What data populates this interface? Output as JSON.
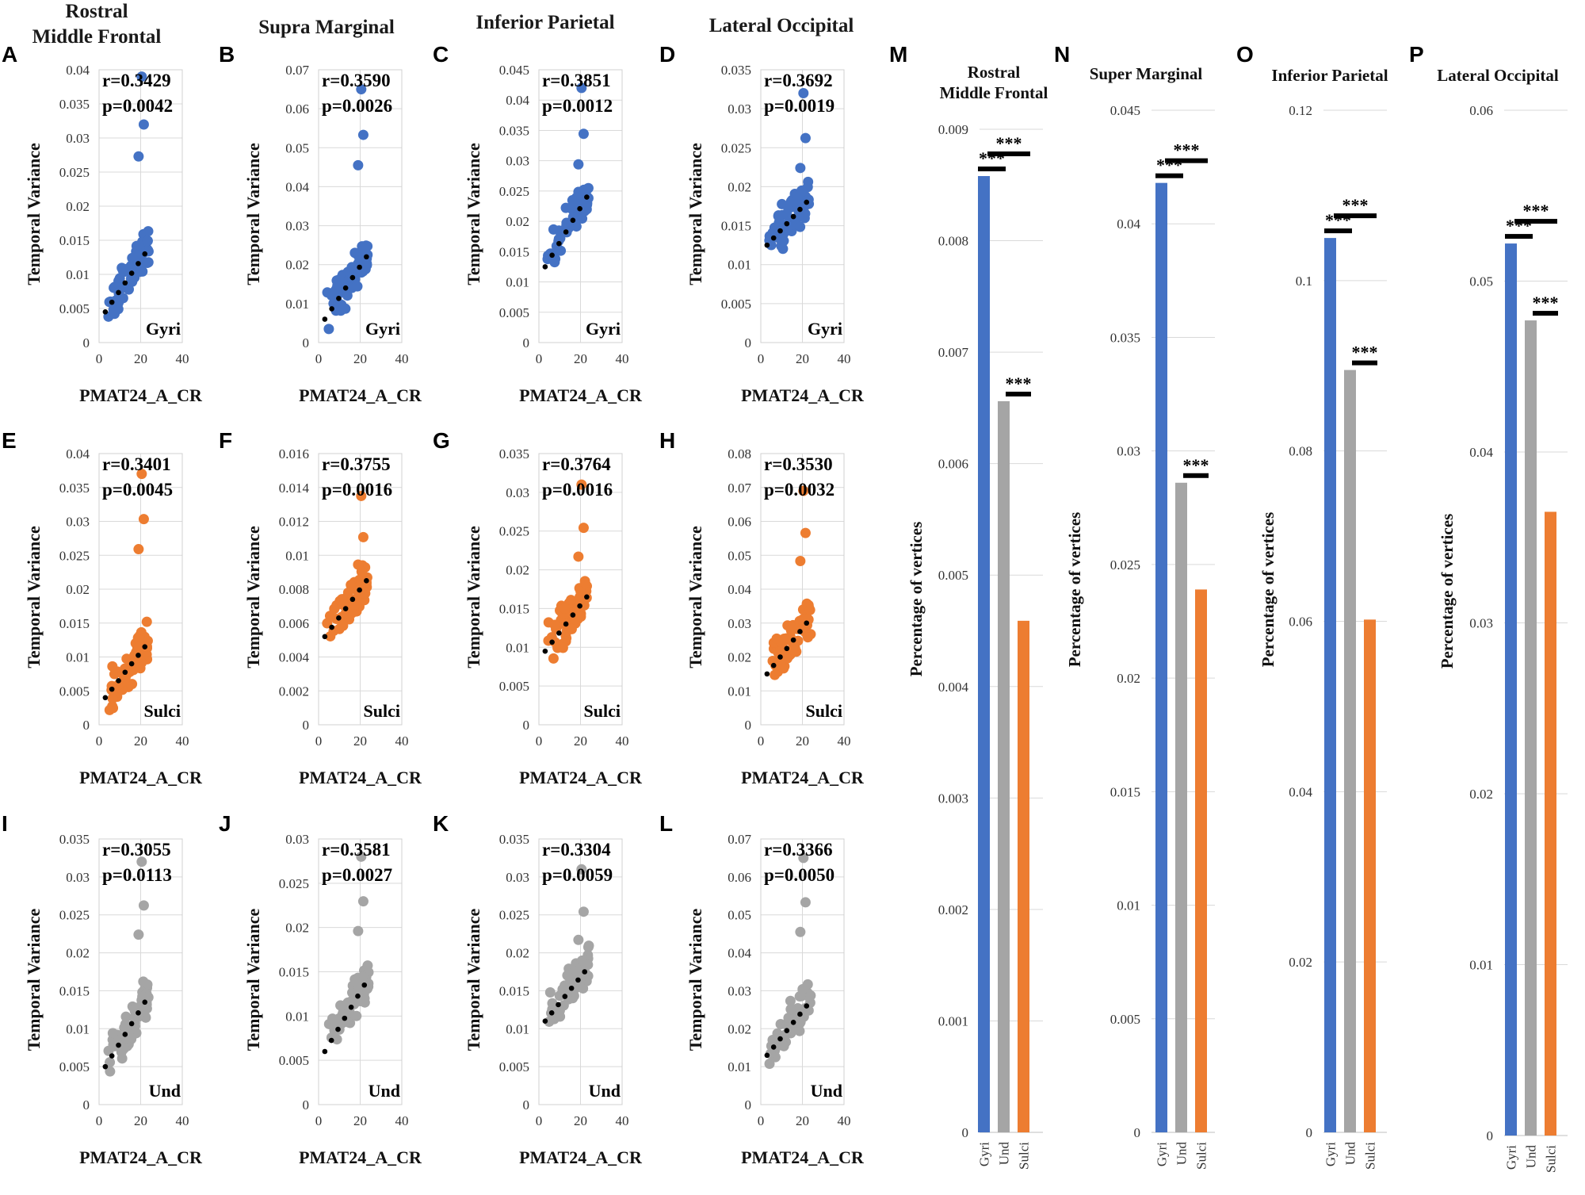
{
  "colors": {
    "gyri": "#4472C4",
    "und": "#A5A5A5",
    "sulci": "#ED7D31",
    "grid": "#D9D9D9",
    "trend": "#000000"
  },
  "scatter_common": {
    "xlabel": "PMAT24_A_CR",
    "ylabel": "Temporal Variance",
    "xticks": [
      "0",
      "20",
      "40"
    ]
  },
  "bar_common": {
    "ylabel": "Percentage of vertices",
    "sig": "***"
  },
  "chart_data": [
    {
      "id": "A",
      "type": "scatter",
      "title": "Rostral Middle Frontal",
      "group": "Gyri",
      "xlabel": "PMAT24_A_CR",
      "ylabel": "Temporal Variance",
      "r": "r=0.3429",
      "p": "p=0.0042",
      "xlim": [
        0,
        40
      ],
      "ylim": [
        0,
        0.04
      ],
      "yticks": [
        "0",
        "0.005",
        "0.01",
        "0.015",
        "0.02",
        "0.025",
        "0.03",
        "0.035",
        "0.04"
      ],
      "ymax_raw": 0.039,
      "trend": [
        [
          3,
          0.0045
        ],
        [
          22,
          0.013
        ]
      ]
    },
    {
      "id": "B",
      "type": "scatter",
      "title": "Supra Marginal",
      "group": "Gyri",
      "xlabel": "PMAT24_A_CR",
      "ylabel": "Temporal Variance",
      "r": "r=0.3590",
      "p": "p=0.0026",
      "xlim": [
        0,
        40
      ],
      "ylim": [
        0,
        0.07
      ],
      "yticks": [
        "0",
        "0.01",
        "0.02",
        "0.03",
        "0.04",
        "0.05",
        "0.06",
        "0.07"
      ],
      "ymax_raw": 0.065,
      "trend": [
        [
          3,
          0.006
        ],
        [
          23,
          0.022
        ]
      ]
    },
    {
      "id": "C",
      "type": "scatter",
      "title": "Inferior Parietal",
      "group": "Gyri",
      "xlabel": "PMAT24_A_CR",
      "ylabel": "Temporal Variance",
      "r": "r=0.3851",
      "p": "p=0.0012",
      "xlim": [
        0,
        40
      ],
      "ylim": [
        0,
        0.045
      ],
      "yticks": [
        "0",
        "0.005",
        "0.01",
        "0.015",
        "0.02",
        "0.025",
        "0.03",
        "0.035",
        "0.04",
        "0.045"
      ],
      "ymax_raw": 0.042,
      "trend": [
        [
          3,
          0.0125
        ],
        [
          23,
          0.024
        ]
      ]
    },
    {
      "id": "D",
      "type": "scatter",
      "title": "Lateral Occipital",
      "group": "Gyri",
      "xlabel": "PMAT24_A_CR",
      "ylabel": "Temporal Variance",
      "r": "r=0.3692",
      "p": "p=0.0019",
      "xlim": [
        0,
        40
      ],
      "ylim": [
        0,
        0.035
      ],
      "yticks": [
        "0",
        "0.005",
        "0.01",
        "0.015",
        "0.02",
        "0.025",
        "0.03",
        "0.035"
      ],
      "ymax_raw": 0.032,
      "trend": [
        [
          3,
          0.0125
        ],
        [
          22,
          0.018
        ]
      ]
    },
    {
      "id": "E",
      "type": "scatter",
      "title": "",
      "group": "Sulci",
      "xlabel": "PMAT24_A_CR",
      "ylabel": "Temporal Variance",
      "r": "r=0.3401",
      "p": "p=0.0045",
      "xlim": [
        0,
        40
      ],
      "ylim": [
        0,
        0.04
      ],
      "yticks": [
        "0",
        "0.005",
        "0.01",
        "0.015",
        "0.02",
        "0.025",
        "0.03",
        "0.035",
        "0.04"
      ],
      "ymax_raw": 0.037,
      "trend": [
        [
          3,
          0.004
        ],
        [
          22,
          0.0115
        ]
      ]
    },
    {
      "id": "F",
      "type": "scatter",
      "title": "",
      "group": "Sulci",
      "xlabel": "PMAT24_A_CR",
      "ylabel": "Temporal Variance",
      "r": "r=0.3755",
      "p": "p=0.0016",
      "xlim": [
        0,
        40
      ],
      "ylim": [
        0,
        0.016
      ],
      "yticks": [
        "0",
        "0.002",
        "0.004",
        "0.006",
        "0.008",
        "0.01",
        "0.012",
        "0.014",
        "0.016"
      ],
      "ymax_raw": 0.0135,
      "trend": [
        [
          3,
          0.0052
        ],
        [
          23,
          0.0085
        ]
      ]
    },
    {
      "id": "G",
      "type": "scatter",
      "title": "",
      "group": "Sulci",
      "xlabel": "PMAT24_A_CR",
      "ylabel": "Temporal Variance",
      "r": "r=0.3764",
      "p": "p=0.0016",
      "xlim": [
        0,
        40
      ],
      "ylim": [
        0,
        0.035
      ],
      "yticks": [
        "0",
        "0.005",
        "0.01",
        "0.015",
        "0.02",
        "0.025",
        "0.03",
        "0.035"
      ],
      "ymax_raw": 0.031,
      "trend": [
        [
          3,
          0.0095
        ],
        [
          23,
          0.0165
        ]
      ]
    },
    {
      "id": "H",
      "type": "scatter",
      "title": "",
      "group": "Sulci",
      "xlabel": "PMAT24_A_CR",
      "ylabel": "Temporal Variance",
      "r": "r=0.3530",
      "p": "p=0.0032",
      "xlim": [
        0,
        40
      ],
      "ylim": [
        0,
        0.08
      ],
      "yticks": [
        "0",
        "0.01",
        "0.02",
        "0.03",
        "0.04",
        "0.05",
        "0.06",
        "0.07",
        "0.08"
      ],
      "ymax_raw": 0.069,
      "trend": [
        [
          3,
          0.015
        ],
        [
          22,
          0.03
        ]
      ]
    },
    {
      "id": "I",
      "type": "scatter",
      "title": "",
      "group": "Und",
      "xlabel": "PMAT24_A_CR",
      "ylabel": "Temporal Variance",
      "r": "r=0.3055",
      "p": "p=0.0113",
      "xlim": [
        0,
        40
      ],
      "ylim": [
        0,
        0.035
      ],
      "yticks": [
        "0",
        "0.005",
        "0.01",
        "0.015",
        "0.02",
        "0.025",
        "0.03",
        "0.035"
      ],
      "ymax_raw": 0.032,
      "trend": [
        [
          3,
          0.005
        ],
        [
          22,
          0.0135
        ]
      ]
    },
    {
      "id": "J",
      "type": "scatter",
      "title": "",
      "group": "Und",
      "xlabel": "PMAT24_A_CR",
      "ylabel": "Temporal Variance",
      "r": "r=0.3581",
      "p": "p=0.0027",
      "xlim": [
        0,
        40
      ],
      "ylim": [
        0,
        0.03
      ],
      "yticks": [
        "0",
        "0.005",
        "0.01",
        "0.015",
        "0.02",
        "0.025",
        "0.03"
      ],
      "ymax_raw": 0.028,
      "trend": [
        [
          3,
          0.006
        ],
        [
          22,
          0.0135
        ]
      ]
    },
    {
      "id": "K",
      "type": "scatter",
      "title": "",
      "group": "Und",
      "xlabel": "PMAT24_A_CR",
      "ylabel": "Temporal Variance",
      "r": "r=0.3304",
      "p": "p=0.0059",
      "xlim": [
        0,
        40
      ],
      "ylim": [
        0,
        0.035
      ],
      "yticks": [
        "0",
        "0.005",
        "0.01",
        "0.015",
        "0.02",
        "0.025",
        "0.03",
        "0.035"
      ],
      "ymax_raw": 0.031,
      "trend": [
        [
          3,
          0.011
        ],
        [
          22,
          0.0175
        ]
      ]
    },
    {
      "id": "L",
      "type": "scatter",
      "title": "",
      "group": "Und",
      "xlabel": "PMAT24_A_CR",
      "ylabel": "Temporal Variance",
      "r": "r=0.3366",
      "p": "p=0.0050",
      "xlim": [
        0,
        40
      ],
      "ylim": [
        0,
        0.07
      ],
      "yticks": [
        "0",
        "0.01",
        "0.02",
        "0.03",
        "0.04",
        "0.05",
        "0.06",
        "0.07"
      ],
      "ymax_raw": 0.065,
      "trend": [
        [
          3,
          0.013
        ],
        [
          22,
          0.026
        ]
      ]
    },
    {
      "id": "M",
      "type": "bar",
      "title": "Rostral Middle Frontal",
      "ylabel": "Percentage of vertices",
      "categories": [
        "Gyri",
        "Und",
        "Sulci"
      ],
      "values": [
        0.00858,
        0.00656,
        0.00459
      ],
      "ylim": [
        0,
        0.009
      ],
      "yticks": [
        "0",
        "0.001",
        "0.002",
        "0.003",
        "0.004",
        "0.005",
        "0.006",
        "0.007",
        "0.008",
        "0.009"
      ],
      "sig": "***"
    },
    {
      "id": "N",
      "type": "bar",
      "title": "Super Marginal",
      "ylabel": "Percentage of vertices",
      "categories": [
        "Gyri",
        "Und",
        "Sulci"
      ],
      "values": [
        0.0418,
        0.0286,
        0.0239
      ],
      "ylim": [
        0,
        0.045
      ],
      "yticks": [
        "0",
        "0.005",
        "0.01",
        "0.015",
        "0.02",
        "0.025",
        "0.03",
        "0.035",
        "0.04",
        "0.045"
      ],
      "sig": "***"
    },
    {
      "id": "O",
      "type": "bar",
      "title": "Inferior Parietal",
      "ylabel": "Percentage of vertices",
      "categories": [
        "Gyri",
        "Und",
        "Sulci"
      ],
      "values": [
        0.105,
        0.0895,
        0.0602
      ],
      "ylim": [
        0,
        0.12
      ],
      "yticks": [
        "0",
        "0.02",
        "0.04",
        "0.06",
        "0.08",
        "0.1",
        "0.12"
      ],
      "sig": "***"
    },
    {
      "id": "P",
      "type": "bar",
      "title": "Lateral Occipital",
      "ylabel": "Percentage of vertices",
      "categories": [
        "Gyri",
        "Und",
        "Sulci"
      ],
      "values": [
        0.0522,
        0.0477,
        0.0365
      ],
      "ylim": [
        0,
        0.06
      ],
      "yticks": [
        "0",
        "0.01",
        "0.02",
        "0.03",
        "0.04",
        "0.05",
        "0.06"
      ],
      "sig": "***"
    }
  ]
}
